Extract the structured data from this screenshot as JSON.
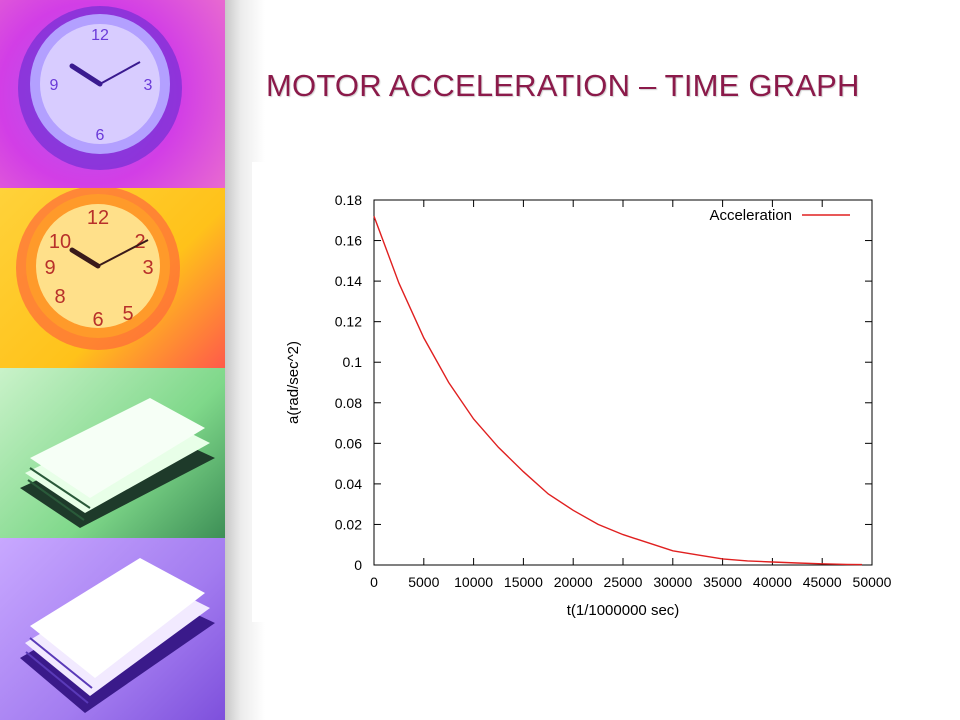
{
  "slide": {
    "title": "MOTOR ACCELERATION – TIME GRAPH"
  },
  "colors": {
    "title": "#8b1a4a",
    "series": "#e02020"
  },
  "decor": {
    "icons": [
      "clock-purple-icon",
      "clock-orange-icon",
      "papers-green-icon",
      "papers-violet-icon"
    ]
  },
  "chart_data": {
    "type": "line",
    "title": "",
    "xlabel": "t(1/1000000 sec)",
    "ylabel": "a(rad/sec^2)",
    "xlim": [
      0,
      50000
    ],
    "ylim": [
      0,
      0.18
    ],
    "x_ticks": [
      0,
      5000,
      10000,
      15000,
      20000,
      25000,
      30000,
      35000,
      40000,
      45000,
      50000
    ],
    "y_ticks": [
      0,
      0.02,
      0.04,
      0.06,
      0.08,
      0.1,
      0.12,
      0.14,
      0.16,
      0.18
    ],
    "x_tick_labels": [
      "0",
      "5000",
      "10000",
      "15000",
      "20000",
      "25000",
      "30000",
      "35000",
      "40000",
      "45000",
      "50000"
    ],
    "y_tick_labels": [
      "0",
      "0.02",
      "0.04",
      "0.06",
      "0.08",
      "0.1",
      "0.12",
      "0.14",
      "0.16",
      "0.18"
    ],
    "grid": false,
    "legend": "top-right",
    "series": [
      {
        "name": "Acceleration",
        "x": [
          0,
          2500,
          5000,
          7500,
          10000,
          12500,
          15000,
          17500,
          20000,
          22500,
          25000,
          27500,
          30000,
          32500,
          35000,
          37500,
          40000,
          42500,
          45000,
          47500,
          49000
        ],
        "y": [
          0.172,
          0.139,
          0.112,
          0.09,
          0.072,
          0.058,
          0.046,
          0.035,
          0.027,
          0.02,
          0.015,
          0.011,
          0.007,
          0.005,
          0.003,
          0.002,
          0.0015,
          0.001,
          0.0006,
          0.0003,
          0.0002
        ]
      }
    ]
  }
}
